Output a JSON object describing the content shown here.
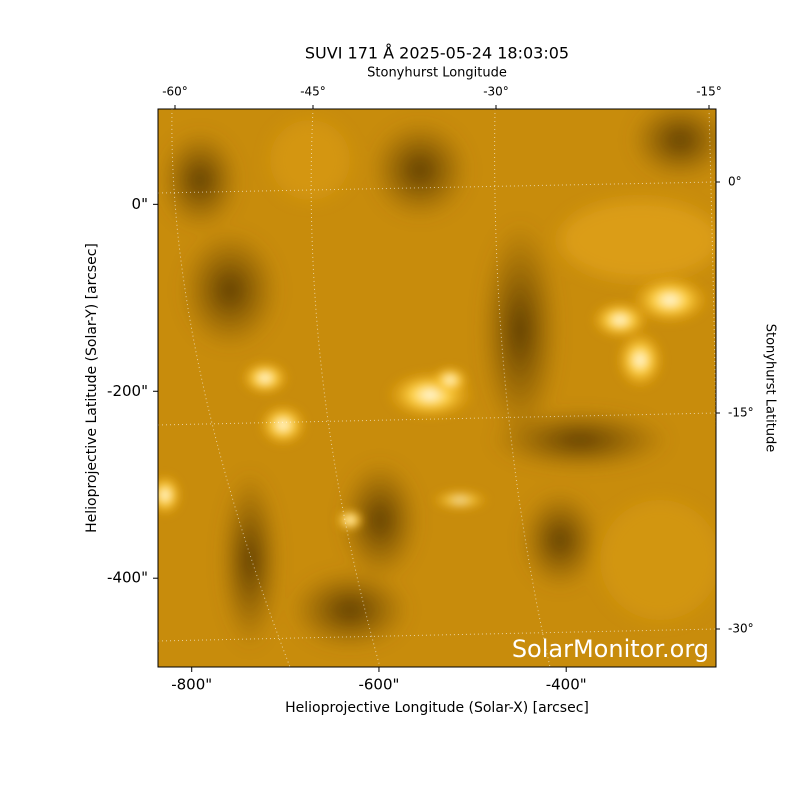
{
  "chart_data": {
    "type": "image",
    "title": "SUVI 171 Å 2025-05-24 18:03:05",
    "x_label": "Helioprojective Longitude (Solar-X) [arcsec]",
    "y_label": "Helioprojective Latitude (Solar-Y) [arcsec]",
    "x2_label": "Stonyhurst Longitude",
    "y2_label": "Stonyhurst Latitude",
    "watermark": "SolarMonitor.org",
    "xlim": [
      -836,
      -240
    ],
    "ylim": [
      -495,
      102
    ],
    "xticks": [
      {
        "value": -800,
        "label": "-800\""
      },
      {
        "value": -600,
        "label": "-600\""
      },
      {
        "value": -400,
        "label": "-400\""
      }
    ],
    "yticks": [
      {
        "value": 0,
        "label": "0\""
      },
      {
        "value": -200,
        "label": "-200\""
      },
      {
        "value": -400,
        "label": "-400\""
      }
    ],
    "x2ticks": [
      {
        "value": -60,
        "label": "-60°"
      },
      {
        "value": -45,
        "label": "-45°"
      },
      {
        "value": -30,
        "label": "-30°"
      },
      {
        "value": -15,
        "label": "-15°"
      }
    ],
    "y2ticks": [
      {
        "value": 0,
        "label": "0°"
      },
      {
        "value": -15,
        "label": "-15°"
      },
      {
        "value": -30,
        "label": "-30°"
      }
    ]
  }
}
